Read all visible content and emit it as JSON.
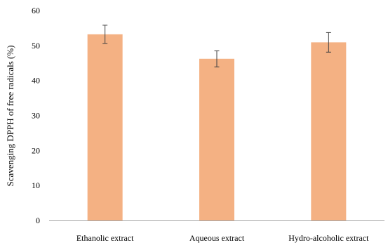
{
  "chart_data": {
    "type": "bar",
    "title": "",
    "xlabel": "",
    "ylabel": "Scavenging DPPH of free radicals (%)",
    "categories": [
      "Ethanolic extract",
      "Aqueous extract",
      "Hydro-alcoholic extract"
    ],
    "values": [
      53.2,
      46.2,
      50.9
    ],
    "error_bars": [
      2.6,
      2.3,
      2.8
    ],
    "ylim": [
      0,
      60
    ],
    "yticks": [
      "0",
      "10",
      "20",
      "30",
      "40",
      "50",
      "60"
    ],
    "grid": false,
    "legend": "none",
    "bar_color": "#f4b183",
    "error_bar_color": "#404040"
  }
}
